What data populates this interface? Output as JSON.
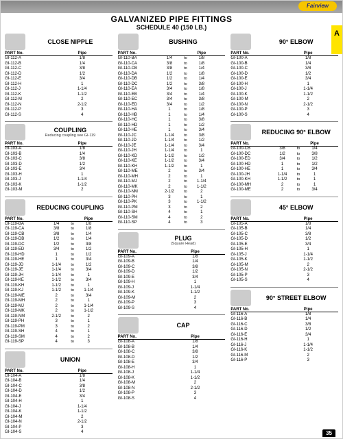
{
  "header": {
    "title": "GALVANIZED PIPE FITTINGS",
    "sub": "SCHEDULE 40 (150 LB.)",
    "logo": "Fairview",
    "tab": "A",
    "page": "35"
  },
  "labels": {
    "partno": "PART No.",
    "pipe": "Pipe",
    "to": "to"
  },
  "col1": {
    "close_nipple": {
      "title": "CLOSE NIPPLE",
      "rows": [
        [
          "GI-112-A",
          "1/8"
        ],
        [
          "GI-112-B",
          "1/4"
        ],
        [
          "GI-112-C",
          "3/8"
        ],
        [
          "GI-112-D",
          "1/2"
        ],
        [
          "GI-112-E",
          "3/4"
        ],
        [
          "GI-112-H",
          "1"
        ],
        [
          "GI-112-J",
          "1-1/4"
        ],
        [
          "GI-112-K",
          "1-1/2"
        ],
        [
          "GI-112-M",
          "2"
        ],
        [
          "GI-112-N",
          "2-1/2"
        ],
        [
          "GI-112-P",
          "3"
        ],
        [
          "GI-112-S",
          "4"
        ]
      ]
    },
    "coupling": {
      "title": "COUPLING",
      "sub": "Reducing coupling see GI-119",
      "rows": [
        [
          "GI-103-A",
          "1/8"
        ],
        [
          "GI-103-B",
          "1/4"
        ],
        [
          "GI-103-C",
          "3/8"
        ],
        [
          "GI-103-D",
          "1/2"
        ],
        [
          "GI-103-E",
          "3/4"
        ],
        [
          "GI-103-H",
          "1"
        ],
        [
          "GI-103-J",
          "1-1/4"
        ],
        [
          "GI-103-K",
          "1-1/2"
        ],
        [
          "GI-103-M",
          "2"
        ]
      ]
    },
    "reducing_coupling": {
      "title": "REDUCING COUPLING",
      "rows": [
        [
          "GI-119-BA",
          "1/4",
          "1/8"
        ],
        [
          "GI-119-CA",
          "3/8",
          "1/8"
        ],
        [
          "GI-119-CB",
          "3/8",
          "1/4"
        ],
        [
          "GI-119-DB",
          "1/2",
          "1/4"
        ],
        [
          "GI-119-DC",
          "1/2",
          "3/8"
        ],
        [
          "GI-119-ED",
          "3/4",
          "1/2"
        ],
        [
          "GI-119-HD",
          "1",
          "1/2"
        ],
        [
          "GI-119-HE",
          "1",
          "3/4"
        ],
        [
          "GI-119-JD",
          "1-1/4",
          "1/2"
        ],
        [
          "GI-119-JE",
          "1-1/4",
          "3/4"
        ],
        [
          "GI-119-JH",
          "1-1/4",
          "1"
        ],
        [
          "GI-119-KE",
          "1-1/2",
          "3/4"
        ],
        [
          "GI-119-KH",
          "1-1/2",
          "1"
        ],
        [
          "GI-119-KJ",
          "1-1/2",
          "1-1/4"
        ],
        [
          "GI-119-ME",
          "2",
          "3/4"
        ],
        [
          "GI-119-MH",
          "2",
          "1"
        ],
        [
          "GI-119-MJ",
          "2",
          "1-1/4"
        ],
        [
          "GI-119-MK",
          "2",
          "1-1/2"
        ],
        [
          "GI-119-NM",
          "2-1/2",
          "2"
        ],
        [
          "GI-119-PH",
          "3",
          "1"
        ],
        [
          "GI-119-PM",
          "3",
          "2"
        ],
        [
          "GI-119-SH",
          "4",
          "1"
        ],
        [
          "GI-119-SM",
          "4",
          "2"
        ],
        [
          "GI-119-SP",
          "4",
          "3"
        ]
      ]
    },
    "union": {
      "title": "UNION",
      "rows": [
        [
          "GI-104-A",
          "1/8"
        ],
        [
          "GI-104-B",
          "1/4"
        ],
        [
          "GI-104-C",
          "3/8"
        ],
        [
          "GI-104-D",
          "1/2"
        ],
        [
          "GI-104-E",
          "3/4"
        ],
        [
          "GI-104-H",
          "1"
        ],
        [
          "GI-104-J",
          "1-1/4"
        ],
        [
          "GI-104-K",
          "1-1/2"
        ],
        [
          "GI-104-M",
          "2"
        ],
        [
          "GI-104-N",
          "2-1/2"
        ],
        [
          "GI-104-P",
          "3"
        ],
        [
          "GI-104-S",
          "4"
        ]
      ]
    }
  },
  "col2": {
    "bushing": {
      "title": "BUSHING",
      "rows": [
        [
          "GI-110-BA",
          "1/4",
          "1/8"
        ],
        [
          "GI-110-CA",
          "3/8",
          "1/8"
        ],
        [
          "GI-110-CB",
          "3/8",
          "1/4"
        ],
        [
          "GI-110-DA",
          "1/2",
          "1/8"
        ],
        [
          "GI-110-DB",
          "1/2",
          "1/4"
        ],
        [
          "GI-110-DC",
          "1/2",
          "3/8"
        ],
        [
          "GI-110-EA",
          "3/4",
          "1/8"
        ],
        [
          "GI-110-EB",
          "3/4",
          "1/4"
        ],
        [
          "GI-110-EC",
          "3/4",
          "3/8"
        ],
        [
          "GI-110-ED",
          "3/4",
          "1/2"
        ],
        [
          "GI-110-HA",
          "1",
          "1/8"
        ],
        [
          "GI-110-HB",
          "1",
          "1/4"
        ],
        [
          "GI-110-HC",
          "1",
          "3/8"
        ],
        [
          "GI-110-HD",
          "1",
          "1/2"
        ],
        [
          "GI-110-HE",
          "1",
          "3/4"
        ],
        [
          "GI-110-JC",
          "1-1/4",
          "3/8"
        ],
        [
          "GI-110-JD",
          "1-1/4",
          "1/2"
        ],
        [
          "GI-110-JE",
          "1-1/4",
          "3/4"
        ],
        [
          "GI-110-JH",
          "1-1/4",
          "1"
        ],
        [
          "GI-110-KD",
          "1-1/2",
          "1/2"
        ],
        [
          "GI-110-KE",
          "1-1/2",
          "3/4"
        ],
        [
          "GI-110-KH",
          "1-1/2",
          "1"
        ],
        [
          "GI-110-ME",
          "2",
          "3/4"
        ],
        [
          "GI-110-MH",
          "2",
          "1"
        ],
        [
          "GI-110-MJ",
          "2",
          "1-1/4"
        ],
        [
          "GI-110-MK",
          "2",
          "1-1/2"
        ],
        [
          "GI-110-NM",
          "2-1/2",
          "2"
        ],
        [
          "GI-110-PH",
          "3",
          "1"
        ],
        [
          "GI-110-PK",
          "3",
          "1-1/2"
        ],
        [
          "GI-110-PM",
          "3",
          "2"
        ],
        [
          "GI-110-SH",
          "4",
          "1"
        ],
        [
          "GI-110-SM",
          "4",
          "2"
        ],
        [
          "GI-110-SP",
          "4",
          "3"
        ]
      ]
    },
    "plug": {
      "title": "PLUG",
      "sub": "(Square Head)",
      "rows": [
        [
          "GI-109-A",
          "1/8"
        ],
        [
          "GI-109-B",
          "1/4"
        ],
        [
          "GI-109-C",
          "3/8"
        ],
        [
          "GI-109-D",
          "1/2"
        ],
        [
          "GI-109-E",
          "3/4"
        ],
        [
          "GI-109-H",
          "1"
        ],
        [
          "GI-109-J",
          "1-1/4"
        ],
        [
          "GI-109-K",
          "1-1/2"
        ],
        [
          "GI-109-M",
          "2"
        ],
        [
          "GI-109-P",
          "3"
        ],
        [
          "GI-109-S",
          "4"
        ]
      ]
    },
    "cap": {
      "title": "CAP",
      "rows": [
        [
          "GI-108-A",
          "1/8"
        ],
        [
          "GI-108-B",
          "1/4"
        ],
        [
          "GI-108-C",
          "3/8"
        ],
        [
          "GI-108-D",
          "1/2"
        ],
        [
          "GI-108-E",
          "3/4"
        ],
        [
          "GI-108-H",
          "1"
        ],
        [
          "GI-108-J",
          "1-1/4"
        ],
        [
          "GI-108-K",
          "1-1/2"
        ],
        [
          "GI-108-M",
          "2"
        ],
        [
          "GI-108-N",
          "2-1/2"
        ],
        [
          "GI-108-P",
          "3"
        ],
        [
          "GI-108-S",
          "4"
        ]
      ]
    }
  },
  "col3": {
    "elbow90": {
      "title": "90° ELBOW",
      "rows": [
        [
          "GI-100-A",
          "1/8"
        ],
        [
          "GI-100-B",
          "1/4"
        ],
        [
          "GI-100-C",
          "3/8"
        ],
        [
          "GI-100-D",
          "1/2"
        ],
        [
          "GI-100-E",
          "3/4"
        ],
        [
          "GI-100-H",
          "1"
        ],
        [
          "GI-100-J",
          "1-1/4"
        ],
        [
          "GI-100-K",
          "1-1/2"
        ],
        [
          "GI-100-M",
          "2"
        ],
        [
          "GI-100-N",
          "2-1/2"
        ],
        [
          "GI-100-P",
          "3"
        ],
        [
          "GI-100-S",
          "4"
        ]
      ]
    },
    "red_elbow": {
      "title": "REDUCING 90° ELBOW",
      "rows": [
        [
          "GI-100-CB",
          "3/8",
          "1/4"
        ],
        [
          "GI-100-DC",
          "1/2",
          "3/8"
        ],
        [
          "GI-100-ED",
          "3/4",
          "1/2"
        ],
        [
          "GI-100-HD",
          "1",
          "1/2"
        ],
        [
          "GI-100-HE",
          "1",
          "3/4"
        ],
        [
          "GI-100-JH",
          "1-1/4",
          "1"
        ],
        [
          "GI-100-KH",
          "1-1/2",
          "1"
        ],
        [
          "GI-100-MH",
          "2",
          "1"
        ],
        [
          "GI-100-ME",
          "2",
          "3/4"
        ]
      ]
    },
    "elbow45": {
      "title": "45° ELBOW",
      "rows": [
        [
          "GI-105-A",
          "1/8"
        ],
        [
          "GI-105-B",
          "1/4"
        ],
        [
          "GI-105-C",
          "3/8"
        ],
        [
          "GI-105-D",
          "1/2"
        ],
        [
          "GI-105-E",
          "3/4"
        ],
        [
          "GI-105-H",
          "1"
        ],
        [
          "GI-105-J",
          "1-1/4"
        ],
        [
          "GI-105-K",
          "1-1/2"
        ],
        [
          "GI-105-M",
          "2"
        ],
        [
          "GI-105-N",
          "2-1/2"
        ],
        [
          "GI-105-P",
          "3"
        ],
        [
          "GI-105-S",
          "4"
        ]
      ]
    },
    "street": {
      "title": "90° STREET ELBOW",
      "rows": [
        [
          "GI-116-A",
          "1/8"
        ],
        [
          "GI-116-B",
          "1/4"
        ],
        [
          "GI-116-C",
          "3/8"
        ],
        [
          "GI-116-D",
          "1/2"
        ],
        [
          "GI-116-E",
          "3/4"
        ],
        [
          "GI-116-H",
          "1"
        ],
        [
          "GI-116-J",
          "1-1/4"
        ],
        [
          "GI-116-K",
          "1-1/2"
        ],
        [
          "GI-116-M",
          "2"
        ],
        [
          "GI-116-P",
          "3"
        ]
      ]
    }
  }
}
